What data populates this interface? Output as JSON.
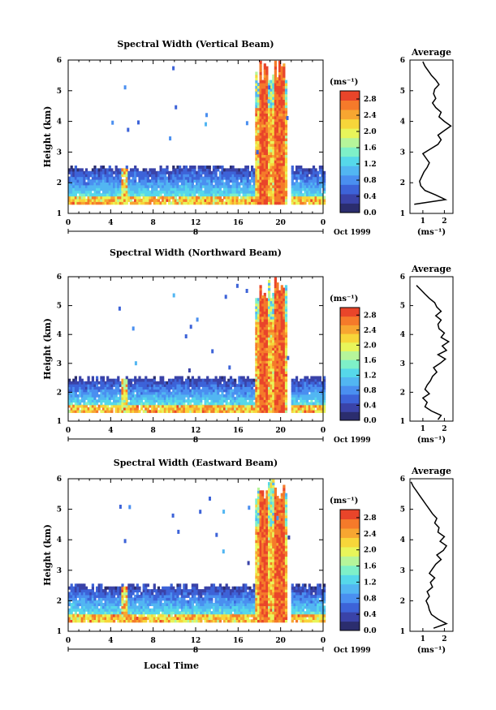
{
  "colors": {
    "bands": [
      "#2b2d6e",
      "#3a43a8",
      "#3d63d8",
      "#4a8ff0",
      "#52b6f2",
      "#56d8ea",
      "#7ef0c8",
      "#b6f59a",
      "#e8f55a",
      "#f7d63a",
      "#f7a631",
      "#f57a2a",
      "#e9452a"
    ]
  },
  "shared": {
    "x_ticks": [
      "0",
      "4",
      "8",
      "12",
      "16",
      "20",
      "0"
    ],
    "y_ticks": [
      "1",
      "2",
      "3",
      "4",
      "5",
      "6"
    ],
    "ylabel": "Height (km)",
    "day_label": "8",
    "date_label": "Oct 1999",
    "unit_label": "(ms⁻¹)",
    "avg_title": "Average",
    "xlabel": "Local Time"
  },
  "chart_data": [
    {
      "type": "heatmap",
      "title": "Spectral Width (Vertical Beam)",
      "xlabel": "",
      "ylabel": "Height (km)",
      "xlim": [
        0,
        24
      ],
      "ylim": [
        1,
        6
      ],
      "colorbar": {
        "ticks": [
          "2.8",
          "2.4",
          "2.0",
          "1.6",
          "1.2",
          "0.8",
          "0.4",
          "0.0"
        ],
        "range": [
          0.0,
          3.0
        ]
      },
      "average": {
        "title": "Average",
        "xlabel": "(ms⁻¹)",
        "xticks": [
          "1",
          "2"
        ],
        "xlim": [
          0.4,
          2.4
        ],
        "height": [
          1.3,
          1.45,
          1.6,
          1.75,
          1.9,
          2.05,
          2.2,
          2.35,
          2.5,
          2.65,
          2.8,
          2.95,
          3.1,
          3.25,
          3.4,
          3.55,
          3.7,
          3.85,
          4.0,
          4.15,
          4.3,
          4.45,
          4.6,
          4.75,
          4.9,
          5.05,
          5.2,
          5.35,
          5.5,
          5.65,
          5.8,
          5.95
        ],
        "width": [
          0.6,
          2.05,
          1.6,
          1.1,
          0.9,
          0.85,
          0.95,
          1.05,
          1.2,
          1.3,
          1.15,
          1.0,
          1.35,
          1.7,
          1.85,
          1.7,
          2.0,
          2.3,
          2.0,
          1.75,
          1.85,
          1.6,
          1.45,
          1.6,
          1.5,
          1.55,
          1.75,
          1.6,
          1.4,
          1.25,
          1.1,
          1.0
        ]
      }
    },
    {
      "type": "heatmap",
      "title": "Spectral Width (Northward Beam)",
      "xlabel": "",
      "ylabel": "Height (km)",
      "xlim": [
        0,
        24
      ],
      "ylim": [
        1,
        6
      ],
      "colorbar": {
        "ticks": [
          "2.8",
          "2.4",
          "2.0",
          "1.6",
          "1.2",
          "0.8",
          "0.4",
          "0.0"
        ],
        "range": [
          0.0,
          3.0
        ]
      },
      "average": {
        "title": "Average",
        "xlabel": "(ms⁻¹)",
        "xticks": [
          "1",
          "2"
        ],
        "xlim": [
          0.4,
          2.4
        ],
        "height": [
          1.05,
          1.2,
          1.35,
          1.5,
          1.65,
          1.8,
          1.95,
          2.1,
          2.25,
          2.4,
          2.55,
          2.7,
          2.85,
          3.0,
          3.15,
          3.3,
          3.45,
          3.6,
          3.75,
          3.9,
          4.05,
          4.2,
          4.35,
          4.5,
          4.65,
          4.8,
          4.95,
          5.1,
          5.25,
          5.4,
          5.55,
          5.7
        ],
        "width": [
          1.7,
          1.85,
          1.4,
          1.1,
          1.2,
          1.0,
          1.3,
          1.1,
          1.2,
          1.35,
          1.45,
          1.65,
          1.5,
          1.8,
          2.05,
          1.7,
          2.1,
          1.9,
          2.2,
          1.85,
          2.0,
          1.75,
          1.7,
          1.85,
          1.6,
          1.85,
          1.65,
          1.55,
          1.3,
          1.1,
          0.9,
          0.7
        ]
      }
    },
    {
      "type": "heatmap",
      "title": "Spectral Width (Eastward Beam)",
      "xlabel": "Local Time",
      "ylabel": "Height (km)",
      "xlim": [
        0,
        24
      ],
      "ylim": [
        1,
        6
      ],
      "colorbar": {
        "ticks": [
          "2.8",
          "2.4",
          "2.0",
          "1.6",
          "1.2",
          "0.8",
          "0.4",
          "0.0"
        ],
        "range": [
          0.0,
          3.0
        ]
      },
      "average": {
        "title": "Average",
        "xlabel": "(ms⁻¹)",
        "xticks": [
          "1",
          "2"
        ],
        "xlim": [
          0.4,
          2.4
        ],
        "height": [
          1.1,
          1.25,
          1.4,
          1.55,
          1.7,
          1.85,
          2.0,
          2.15,
          2.3,
          2.45,
          2.6,
          2.75,
          2.9,
          3.05,
          3.2,
          3.35,
          3.5,
          3.65,
          3.8,
          3.95,
          4.1,
          4.25,
          4.4,
          4.55,
          4.7,
          4.85,
          5.0,
          5.15,
          5.3,
          5.45,
          5.6,
          5.75,
          5.9
        ],
        "width": [
          1.5,
          2.1,
          1.7,
          1.4,
          1.3,
          1.25,
          1.15,
          1.3,
          1.2,
          1.45,
          1.35,
          1.55,
          1.3,
          1.45,
          1.6,
          1.85,
          1.65,
          1.95,
          2.1,
          1.8,
          2.0,
          1.7,
          1.75,
          1.55,
          1.65,
          1.45,
          1.3,
          1.15,
          1.0,
          0.85,
          0.7,
          0.55,
          0.45
        ]
      }
    }
  ]
}
